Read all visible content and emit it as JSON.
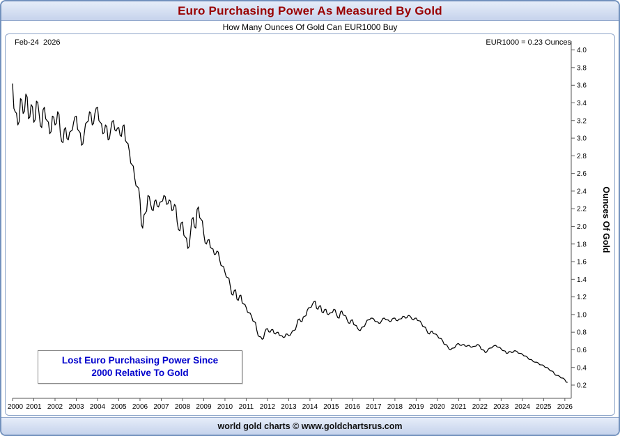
{
  "header": {
    "title": "Euro Purchasing Power As Measured By Gold",
    "subtitle": "How Many Ounces Of Gold Can EUR1000 Buy",
    "title_color": "#990000"
  },
  "plot": {
    "date_label": "Feb-24  2026",
    "value_label": "EUR1000 = 0.23 Ounces",
    "annotation_line1": "Lost Euro Purchasing Power Since",
    "annotation_line2": "2000 Relative To Gold",
    "annotation_color": "#0000cc"
  },
  "footer": {
    "credit": "world gold charts © www.goldchartsrus.com"
  },
  "chart_data": {
    "type": "line",
    "title": "Euro Purchasing Power As Measured By Gold",
    "subtitle": "How Many Ounces Of Gold Can EUR1000 Buy",
    "xlabel": "",
    "ylabel": "Ounces Of Gold",
    "line_color": "#000000",
    "grid": false,
    "legend": "none",
    "xlim": [
      2000,
      2026.3
    ],
    "ylim": [
      0.05,
      4.1
    ],
    "x_ticks": [
      2000,
      2001,
      2002,
      2003,
      2004,
      2005,
      2006,
      2007,
      2008,
      2009,
      2010,
      2011,
      2012,
      2013,
      2014,
      2015,
      2016,
      2017,
      2018,
      2019,
      2020,
      2021,
      2022,
      2023,
      2024,
      2025,
      2026
    ],
    "y_ticks": [
      0.2,
      0.4,
      0.6,
      0.8,
      1.0,
      1.2,
      1.4,
      1.6,
      1.8,
      2.0,
      2.2,
      2.4,
      2.6,
      2.8,
      3.0,
      3.2,
      3.4,
      3.6,
      3.8,
      4.0
    ],
    "latest": {
      "date": "Feb-24 2026",
      "value_ounces": 0.23
    },
    "x_start": 2000,
    "x_step": 0.125,
    "values": [
      3.62,
      3.3,
      3.15,
      3.45,
      3.28,
      3.5,
      3.22,
      3.38,
      3.18,
      3.42,
      3.28,
      3.12,
      3.35,
      3.2,
      3.05,
      3.25,
      3.15,
      3.3,
      3.05,
      2.95,
      3.12,
      2.98,
      3.08,
      3.18,
      3.25,
      3.08,
      2.92,
      3.05,
      3.18,
      3.3,
      3.15,
      3.28,
      3.35,
      3.18,
      3.05,
      3.15,
      2.98,
      3.1,
      3.2,
      3.08,
      3.12,
      3.02,
      3.15,
      2.95,
      2.85,
      2.7,
      2.55,
      2.45,
      2.3,
      1.98,
      2.15,
      2.35,
      2.25,
      2.18,
      2.3,
      2.22,
      2.28,
      2.35,
      2.25,
      2.3,
      2.18,
      2.25,
      2.05,
      1.95,
      2.05,
      1.88,
      1.75,
      1.92,
      2.1,
      1.98,
      2.22,
      2.08,
      1.92,
      1.8,
      1.85,
      1.75,
      1.68,
      1.72,
      1.62,
      1.55,
      1.48,
      1.42,
      1.32,
      1.22,
      1.28,
      1.16,
      1.22,
      1.12,
      1.08,
      1.02,
      0.98,
      0.92,
      0.82,
      0.75,
      0.72,
      0.8,
      0.84,
      0.8,
      0.83,
      0.78,
      0.8,
      0.76,
      0.74,
      0.78,
      0.76,
      0.79,
      0.82,
      0.88,
      0.95,
      0.92,
      0.98,
      1.05,
      1.08,
      1.12,
      1.15,
      1.06,
      1.1,
      1.02,
      1.06,
      1.0,
      1.02,
      1.06,
      1.0,
      0.96,
      1.04,
      0.99,
      0.94,
      0.9,
      0.94,
      0.88,
      0.84,
      0.82,
      0.86,
      0.9,
      0.94,
      0.96,
      0.95,
      0.92,
      0.9,
      0.93,
      0.96,
      0.94,
      0.92,
      0.95,
      0.96,
      0.93,
      0.95,
      0.98,
      0.96,
      0.99,
      0.97,
      0.94,
      0.96,
      0.93,
      0.9,
      0.86,
      0.82,
      0.78,
      0.81,
      0.78,
      0.76,
      0.73,
      0.7,
      0.66,
      0.63,
      0.6,
      0.62,
      0.65,
      0.67,
      0.65,
      0.66,
      0.64,
      0.65,
      0.63,
      0.64,
      0.66,
      0.64,
      0.6,
      0.57,
      0.6,
      0.62,
      0.64,
      0.65,
      0.63,
      0.61,
      0.59,
      0.56,
      0.58,
      0.57,
      0.59,
      0.58,
      0.56,
      0.55,
      0.53,
      0.51,
      0.49,
      0.47,
      0.46,
      0.45,
      0.43,
      0.42,
      0.4,
      0.38,
      0.36,
      0.33,
      0.31,
      0.3,
      0.28,
      0.26,
      0.23
    ]
  }
}
